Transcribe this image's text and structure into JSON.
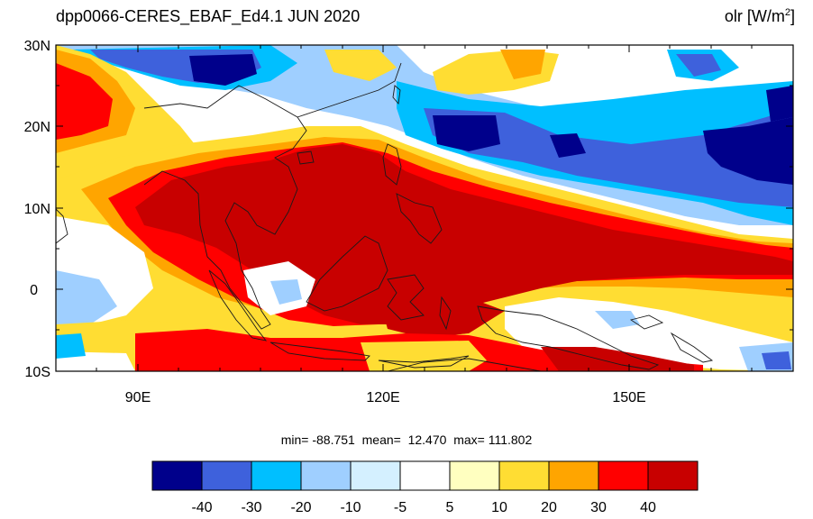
{
  "header": {
    "title": "dpp0066-CERES_EBAF_Ed4.1  JUN 2020",
    "variable": "olr",
    "unit_prefix": "[W/m",
    "unit_exp": "2",
    "unit_suffix": "]"
  },
  "stats": {
    "text": "min= -88.751  mean=  12.470  max= 111.802"
  },
  "map": {
    "projection": "cylindrical equidistant",
    "lon_range": [
      80,
      170
    ],
    "lat_range": [
      -10,
      30
    ],
    "lat_ticks": [
      {
        "value": 30,
        "label": "30N"
      },
      {
        "value": 20,
        "label": "20N"
      },
      {
        "value": 10,
        "label": "10N"
      },
      {
        "value": 0,
        "label": "0"
      },
      {
        "value": -10,
        "label": "10S"
      }
    ],
    "lon_ticks": [
      {
        "value": 90,
        "label": "90E"
      },
      {
        "value": 120,
        "label": "120E"
      },
      {
        "value": 150,
        "label": "150E"
      }
    ]
  },
  "colorbar": {
    "colors": [
      "#00008b",
      "#3e61dc",
      "#00bfff",
      "#9fcfff",
      "#d4f0ff",
      "#ffffff",
      "#ffffc0",
      "#ffdd33",
      "#ffa500",
      "#ff0000",
      "#c80000"
    ],
    "labels": [
      "-40",
      "-30",
      "-20",
      "-10",
      "-5",
      "5",
      "10",
      "20",
      "30",
      "40"
    ]
  }
}
